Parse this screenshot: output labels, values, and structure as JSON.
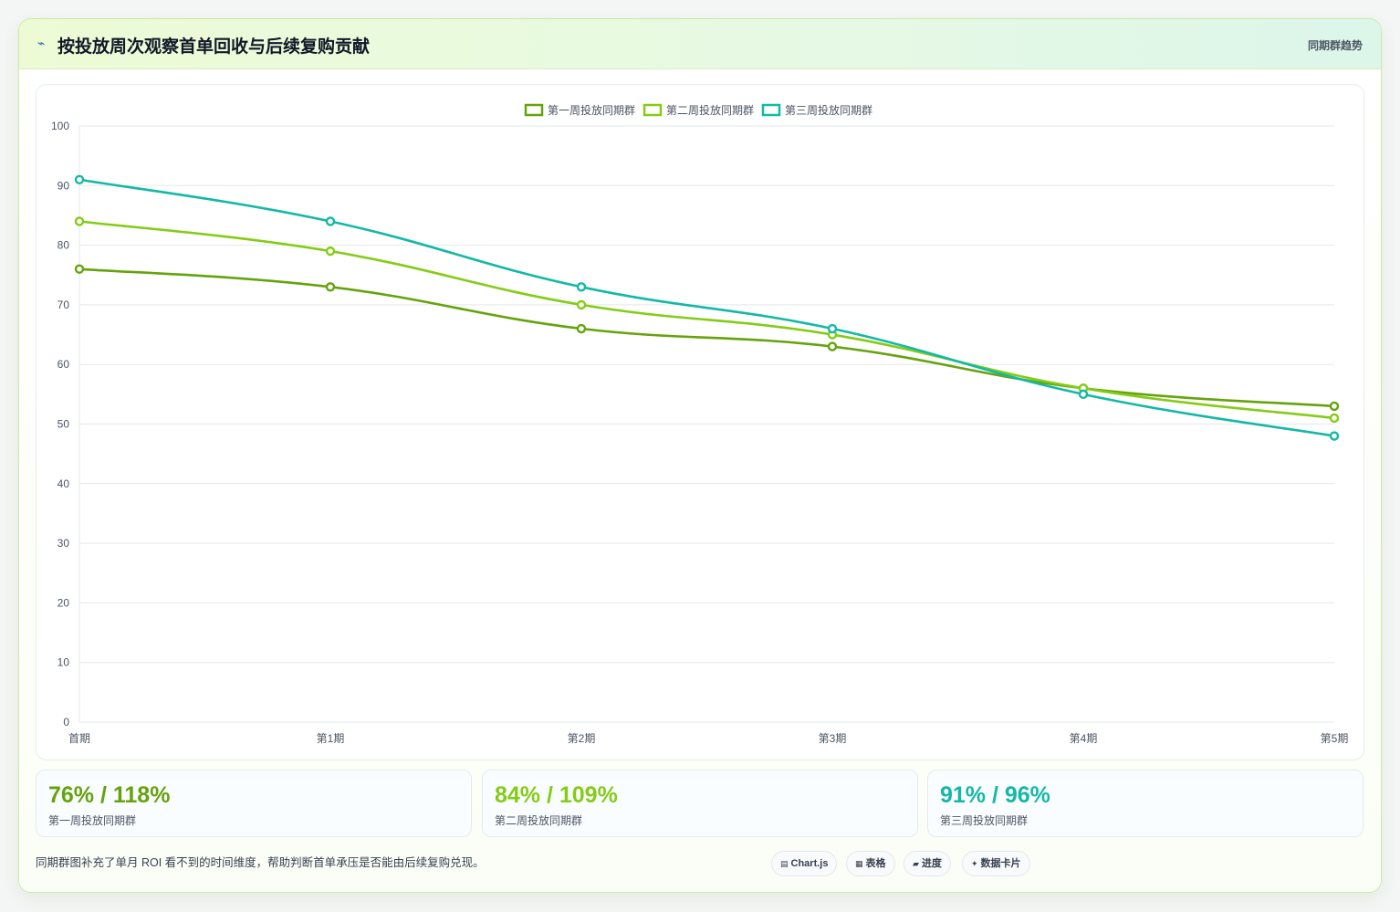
{
  "header": {
    "icon": "trend-icon",
    "title": "按投放周次观察首单回收与后续复购贡献",
    "tag": "同期群趋势"
  },
  "colors": {
    "series1": "#65a30d",
    "series2": "#84cc16",
    "series3": "#14b8a6",
    "grid": "#e5e7eb",
    "tick": "#4b5563"
  },
  "chart_data": {
    "type": "line",
    "title": "",
    "xlabel": "",
    "ylabel": "",
    "categories": [
      "首期",
      "第1期",
      "第2期",
      "第3期",
      "第4期",
      "第5期"
    ],
    "ylim": [
      0,
      100
    ],
    "yticks": [
      0,
      10,
      20,
      30,
      40,
      50,
      60,
      70,
      80,
      90,
      100
    ],
    "grid": true,
    "legend": "top-center",
    "series": [
      {
        "name": "第一周投放同期群",
        "values": [
          76,
          73,
          66,
          63,
          56,
          53
        ],
        "color": "#65a30d"
      },
      {
        "name": "第二周投放同期群",
        "values": [
          84,
          79,
          70,
          65,
          56,
          51
        ],
        "color": "#84cc16"
      },
      {
        "name": "第三周投放同期群",
        "values": [
          91,
          84,
          73,
          66,
          55,
          48
        ],
        "color": "#14b8a6"
      }
    ]
  },
  "kpis": [
    {
      "value": "76% / 118%",
      "label": "第一周投放同期群",
      "color": "#65a30d"
    },
    {
      "value": "84% / 109%",
      "label": "第二周投放同期群",
      "color": "#84cc16"
    },
    {
      "value": "91% / 96%",
      "label": "第三周投放同期群",
      "color": "#14b8a6"
    }
  ],
  "footer": {
    "note": "同期群图补充了单月 ROI 看不到的时间维度，帮助判断首单承压是否能由后续复购兑现。"
  },
  "chips": [
    {
      "icon": "chart-icon",
      "glyph": "▤",
      "label": "Chart.js"
    },
    {
      "icon": "table-icon",
      "glyph": "▦",
      "label": "表格"
    },
    {
      "icon": "progress-icon",
      "glyph": "▰",
      "label": "进度"
    },
    {
      "icon": "card-icon",
      "glyph": "✦",
      "label": "数据卡片"
    }
  ]
}
